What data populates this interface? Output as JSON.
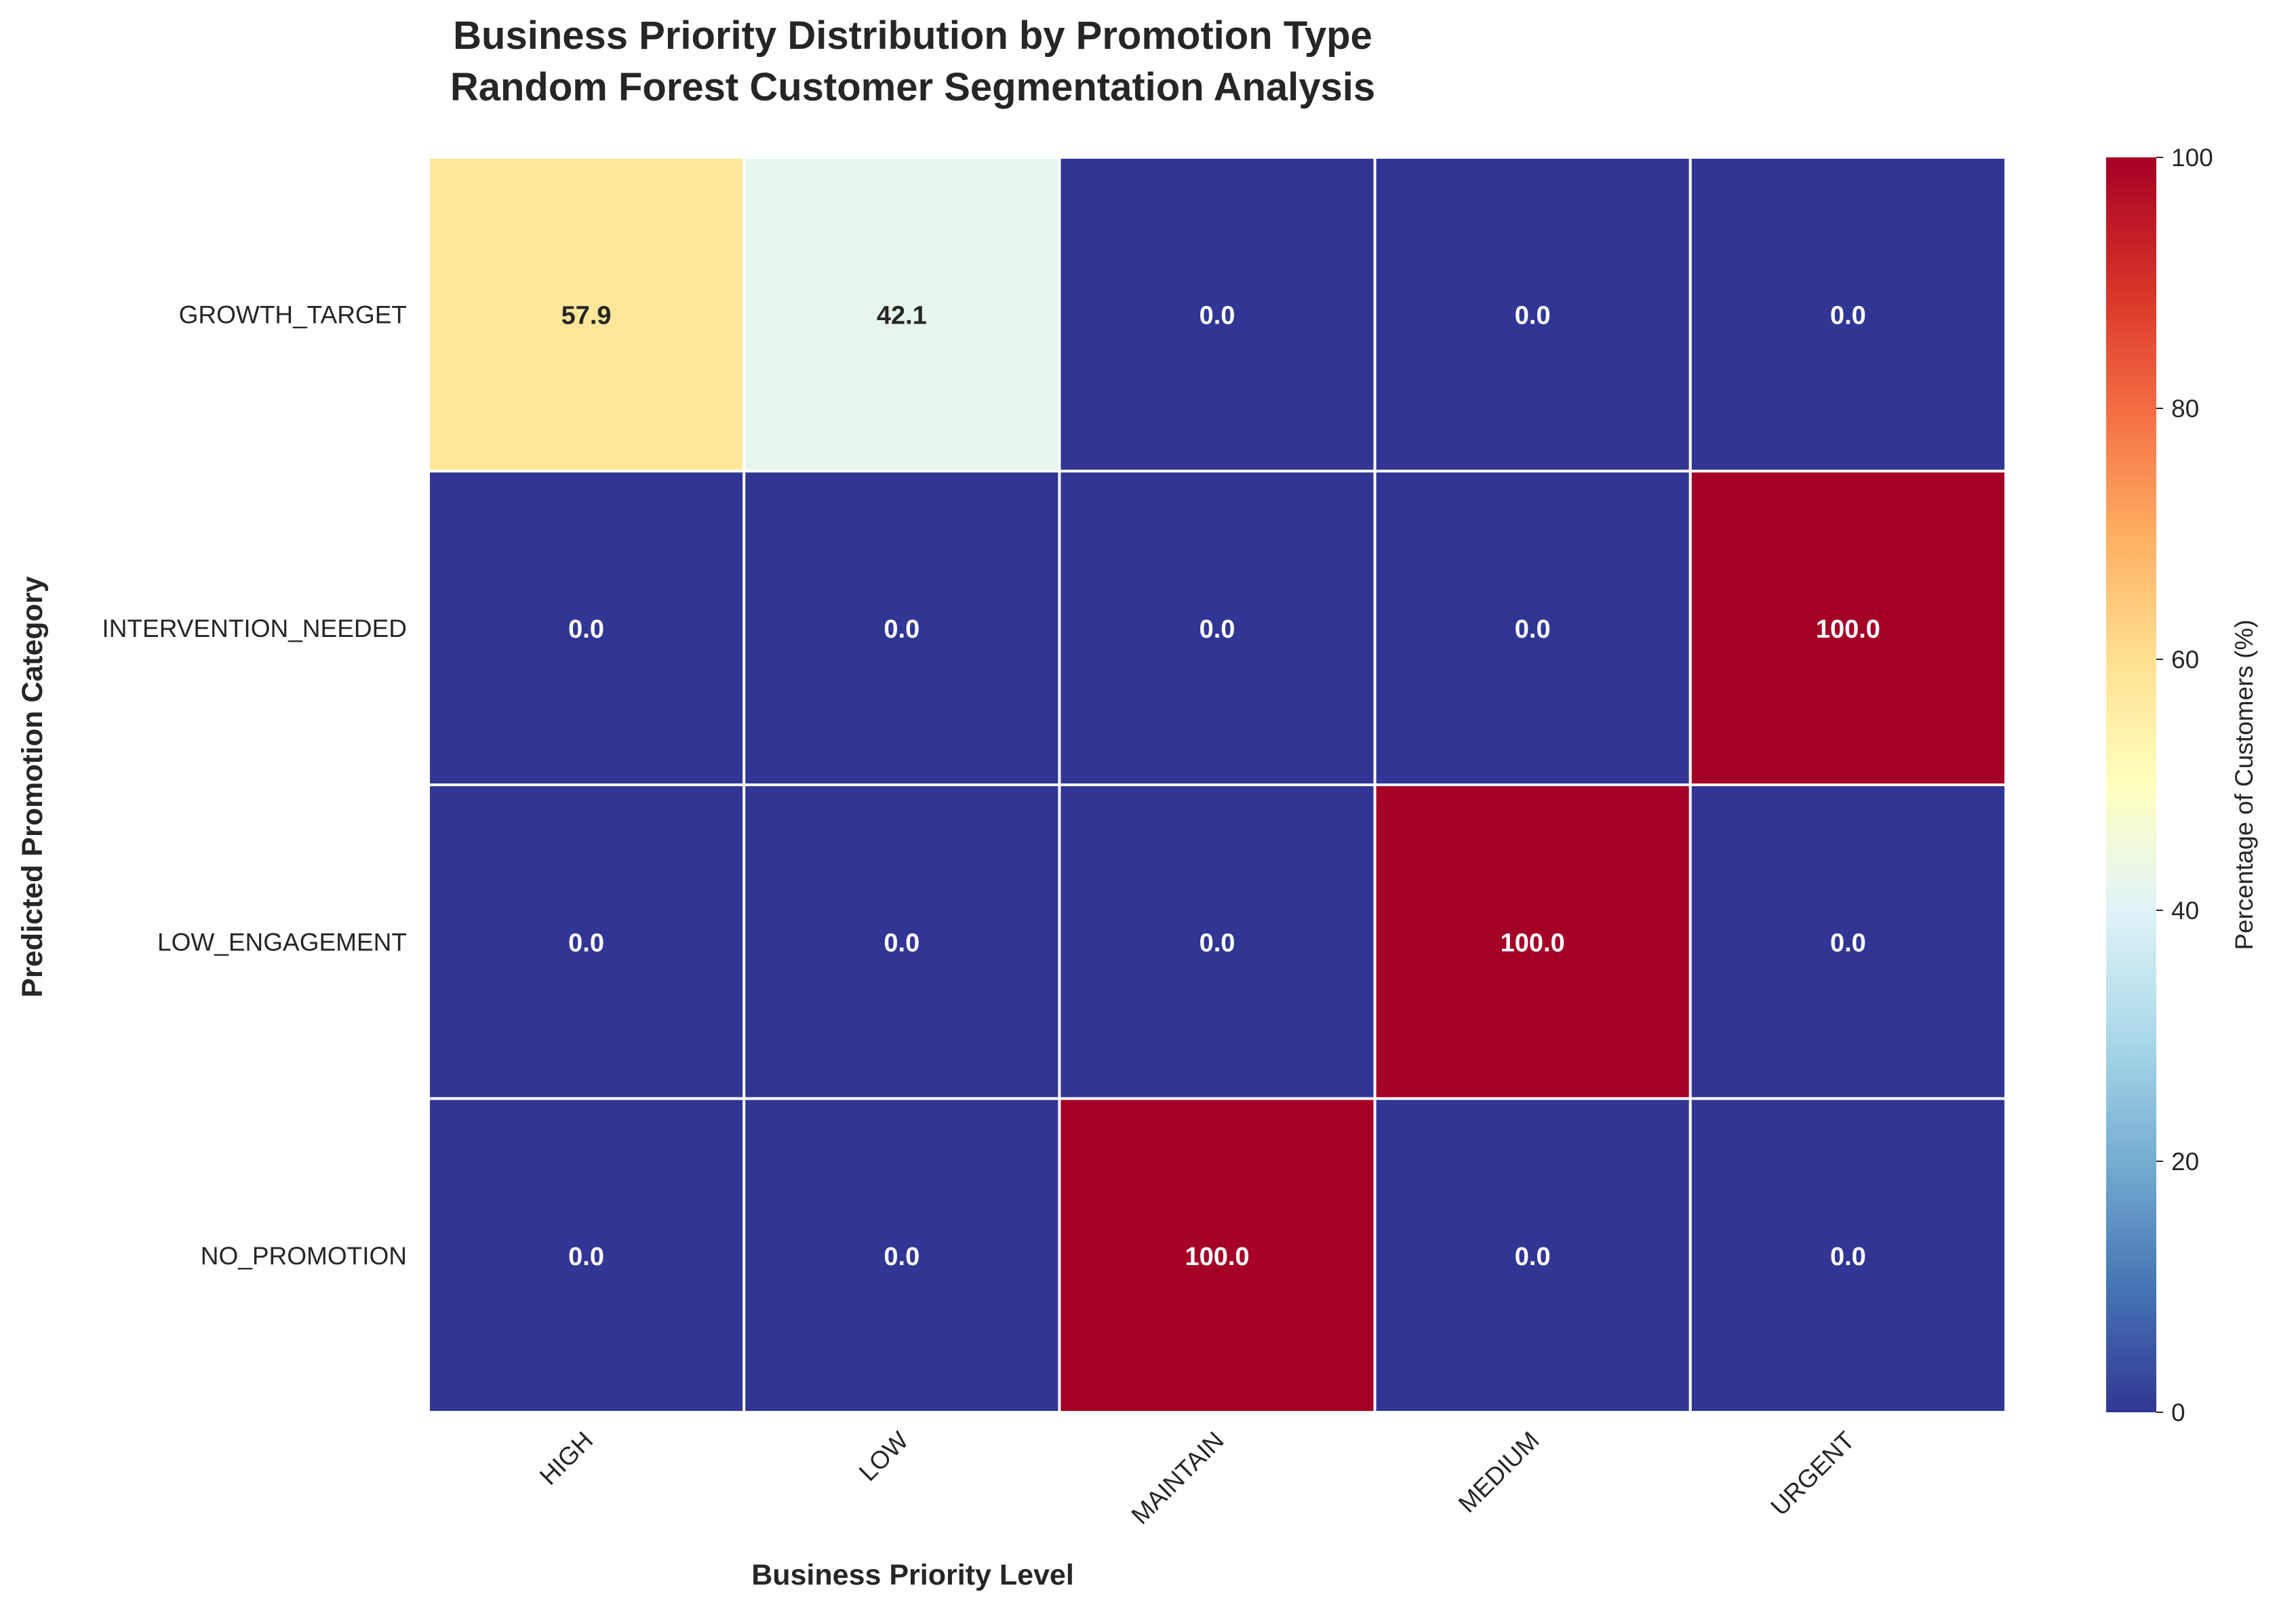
{
  "chart_data": {
    "type": "heatmap",
    "title": "Business Priority Distribution by Promotion Type",
    "subtitle": "Random Forest Customer Segmentation Analysis",
    "xlabel": "Business Priority Level",
    "ylabel": "Predicted Promotion Category",
    "x_categories": [
      "HIGH",
      "LOW",
      "MAINTAIN",
      "MEDIUM",
      "URGENT"
    ],
    "y_categories": [
      "GROWTH_TARGET",
      "INTERVENTION_NEEDED",
      "LOW_ENGAGEMENT",
      "NO_PROMOTION"
    ],
    "values": [
      [
        57.9,
        42.1,
        0.0,
        0.0,
        0.0
      ],
      [
        0.0,
        0.0,
        0.0,
        0.0,
        100.0
      ],
      [
        0.0,
        0.0,
        0.0,
        100.0,
        0.0
      ],
      [
        0.0,
        0.0,
        100.0,
        0.0,
        0.0
      ]
    ],
    "value_format": "0.0",
    "colormap": "RdYlBu_r",
    "vmin": 0,
    "vmax": 100,
    "colorbar": {
      "label": "Percentage of Customers (%)",
      "ticks": [
        0,
        20,
        40,
        60,
        80,
        100
      ]
    },
    "cell_border_color": "#ffffff"
  }
}
